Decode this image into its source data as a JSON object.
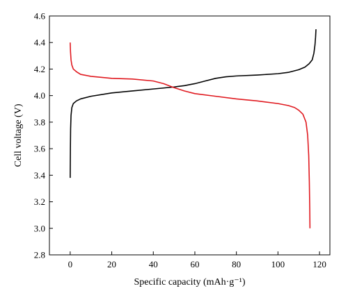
{
  "chart_data": {
    "type": "line",
    "xlabel": "Specific capacity (mAh·g⁻¹)",
    "ylabel": "Cell voltage (V)",
    "xlim": [
      -10,
      125
    ],
    "ylim": [
      2.8,
      4.6
    ],
    "x_ticks": [
      0,
      20,
      40,
      60,
      80,
      100,
      120
    ],
    "y_ticks": [
      2.8,
      3.0,
      3.2,
      3.4,
      3.6,
      3.8,
      4.0,
      4.2,
      4.4,
      4.6
    ],
    "x_tick_labels": [
      "0",
      "20",
      "40",
      "60",
      "80",
      "100",
      "120"
    ],
    "y_tick_labels": [
      "2.8",
      "3.0",
      "3.2",
      "3.4",
      "3.6",
      "3.8",
      "4.0",
      "4.2",
      "4.4",
      "4.6"
    ],
    "grid": false,
    "series": [
      {
        "color": "#000000",
        "points": [
          [
            0.0,
            3.38
          ],
          [
            0.1,
            3.6
          ],
          [
            0.2,
            3.75
          ],
          [
            0.4,
            3.85
          ],
          [
            0.8,
            3.91
          ],
          [
            1.5,
            3.94
          ],
          [
            3,
            3.96
          ],
          [
            5,
            3.975
          ],
          [
            10,
            3.995
          ],
          [
            20,
            4.02
          ],
          [
            30,
            4.035
          ],
          [
            40,
            4.05
          ],
          [
            50,
            4.065
          ],
          [
            55,
            4.075
          ],
          [
            60,
            4.09
          ],
          [
            65,
            4.11
          ],
          [
            70,
            4.13
          ],
          [
            75,
            4.142
          ],
          [
            80,
            4.148
          ],
          [
            90,
            4.155
          ],
          [
            100,
            4.165
          ],
          [
            105,
            4.175
          ],
          [
            110,
            4.195
          ],
          [
            113,
            4.215
          ],
          [
            115,
            4.24
          ],
          [
            116.5,
            4.27
          ],
          [
            117.3,
            4.32
          ],
          [
            117.8,
            4.38
          ],
          [
            118.1,
            4.44
          ],
          [
            118.3,
            4.5
          ]
        ]
      },
      {
        "color": "#e0191f",
        "points": [
          [
            0.0,
            4.4
          ],
          [
            0.15,
            4.33
          ],
          [
            0.4,
            4.27
          ],
          [
            0.8,
            4.23
          ],
          [
            1.5,
            4.2
          ],
          [
            3,
            4.18
          ],
          [
            5,
            4.16
          ],
          [
            10,
            4.145
          ],
          [
            20,
            4.13
          ],
          [
            30,
            4.125
          ],
          [
            40,
            4.11
          ],
          [
            45,
            4.09
          ],
          [
            50,
            4.06
          ],
          [
            55,
            4.035
          ],
          [
            60,
            4.015
          ],
          [
            70,
            3.995
          ],
          [
            80,
            3.975
          ],
          [
            90,
            3.96
          ],
          [
            100,
            3.94
          ],
          [
            105,
            3.925
          ],
          [
            108,
            3.91
          ],
          [
            110,
            3.89
          ],
          [
            112,
            3.86
          ],
          [
            113.5,
            3.8
          ],
          [
            114.3,
            3.7
          ],
          [
            114.8,
            3.55
          ],
          [
            115.1,
            3.35
          ],
          [
            115.3,
            3.15
          ],
          [
            115.35,
            3.08
          ],
          [
            115.4,
            3.0
          ]
        ]
      }
    ]
  }
}
